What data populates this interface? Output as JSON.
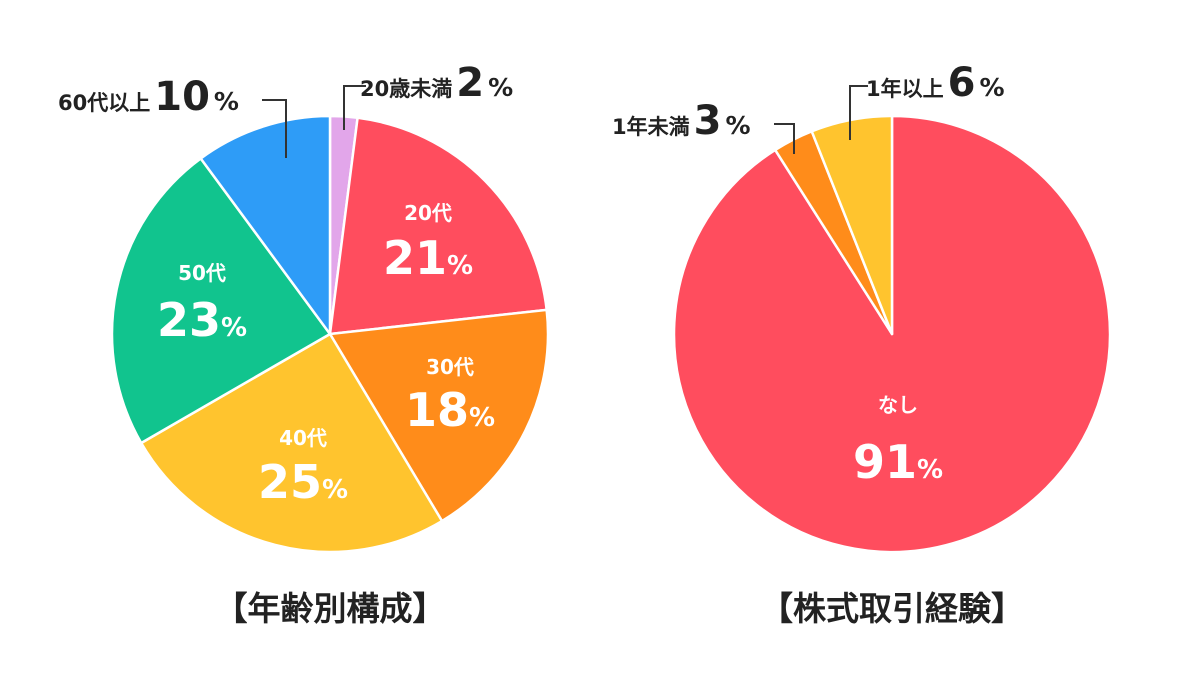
{
  "chart_data": [
    {
      "type": "pie",
      "title": "【年齢別構成】",
      "unit": "%",
      "slices": [
        {
          "label": "20歳未満",
          "value": 2,
          "color": "#e2a6ea"
        },
        {
          "label": "20代",
          "value": 21,
          "color": "#ff4d5e"
        },
        {
          "label": "30代",
          "value": 18,
          "color": "#ff8c1a"
        },
        {
          "label": "40代",
          "value": 25,
          "color": "#ffc42e"
        },
        {
          "label": "50代",
          "value": 23,
          "color": "#11c48e"
        },
        {
          "label": "60代以上",
          "value": 10,
          "color": "#2e9cf7"
        }
      ]
    },
    {
      "type": "pie",
      "title": "【株式取引経験】",
      "unit": "%",
      "slices": [
        {
          "label": "なし",
          "value": 91,
          "color": "#ff4d5e"
        },
        {
          "label": "1年未満",
          "value": 3,
          "color": "#ff8c1a"
        },
        {
          "label": "1年以上",
          "value": 6,
          "color": "#ffc42e"
        }
      ]
    }
  ]
}
